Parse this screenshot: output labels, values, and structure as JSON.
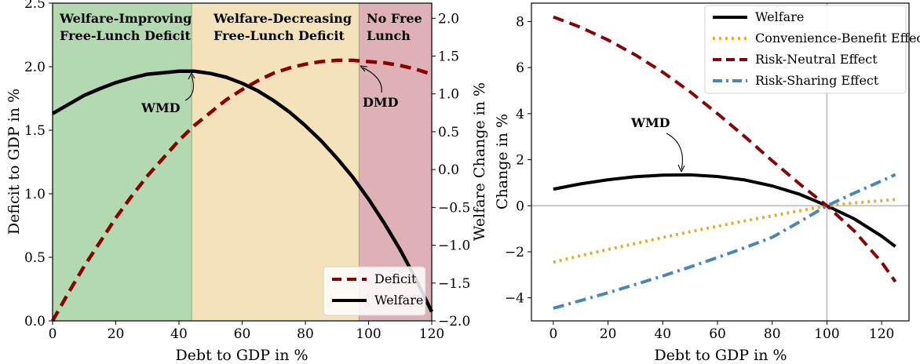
{
  "chart_data": [
    {
      "type": "line",
      "xlabel": "Debt to GDP in %",
      "ylabel": "Deficit to GDP in %",
      "ylabel_right": "Welfare Change in %",
      "xlim": [
        0,
        120
      ],
      "ylim": [
        0,
        2.5
      ],
      "ylim_right": [
        -2.0,
        2.2
      ],
      "xticks": [
        "0",
        "20",
        "40",
        "60",
        "80",
        "100",
        "120"
      ],
      "yticks": [
        "0.0",
        "0.5",
        "1.0",
        "1.5",
        "2.0",
        "2.5"
      ],
      "yticks_right": [
        "−2.0",
        "−1.5",
        "−1.0",
        "−0.5",
        "0.0",
        "0.5",
        "1.0",
        "1.5",
        "2.0"
      ],
      "regions": [
        {
          "label_line1": "Welfare-Improving",
          "label_line2": "Free-Lunch Deficit",
          "x_from": 0,
          "x_to": 44,
          "fill": "#b3d9b1",
          "text_color": "#2e8b2e"
        },
        {
          "label_line1": "Welfare-Decreasing",
          "label_line2": "Free-Lunch Deficit",
          "x_from": 44,
          "x_to": 97,
          "fill": "#f4e3ba",
          "text_color": "#d4a02e"
        },
        {
          "label_line1": "No Free",
          "label_line2": "Lunch",
          "x_from": 97,
          "x_to": 120,
          "fill": "#deb1b6",
          "text_color": "#a31515"
        }
      ],
      "annotations": [
        {
          "text": "WMD",
          "x": 44,
          "axis": "left",
          "y": 1.99
        },
        {
          "text": "DMD",
          "x": 97,
          "axis": "left",
          "y": 2.05
        }
      ],
      "legend_position": "lower-right",
      "series": [
        {
          "name": "Deficit",
          "axis": "left",
          "color": "#8b0000",
          "style": "dashed",
          "x": [
            0,
            5,
            10,
            15,
            20,
            25,
            30,
            35,
            40,
            45,
            50,
            55,
            60,
            65,
            70,
            75,
            80,
            85,
            90,
            95,
            100,
            105,
            110,
            115,
            120
          ],
          "y": [
            0.0,
            0.22,
            0.43,
            0.62,
            0.81,
            0.98,
            1.14,
            1.28,
            1.42,
            1.54,
            1.64,
            1.74,
            1.82,
            1.89,
            1.95,
            1.99,
            2.02,
            2.04,
            2.05,
            2.05,
            2.04,
            2.03,
            2.01,
            1.98,
            1.94
          ]
        },
        {
          "name": "Welfare",
          "axis": "right",
          "color": "#000000",
          "style": "solid",
          "x": [
            0,
            5,
            10,
            15,
            20,
            25,
            30,
            35,
            40,
            45,
            50,
            55,
            60,
            65,
            70,
            75,
            80,
            85,
            90,
            95,
            100,
            105,
            110,
            115,
            120
          ],
          "y": [
            0.74,
            0.86,
            0.98,
            1.07,
            1.15,
            1.21,
            1.26,
            1.28,
            1.3,
            1.3,
            1.27,
            1.22,
            1.14,
            1.04,
            0.91,
            0.76,
            0.58,
            0.38,
            0.15,
            -0.1,
            -0.39,
            -0.71,
            -1.06,
            -1.45,
            -1.88
          ]
        }
      ]
    },
    {
      "type": "line",
      "xlabel": "Debt to GDP in %",
      "ylabel": "Change in %",
      "xlim": [
        -8,
        130
      ],
      "ylim": [
        -5,
        8.8
      ],
      "xticks": [
        "0",
        "20",
        "40",
        "60",
        "80",
        "100",
        "120"
      ],
      "yticks": [
        "−4",
        "−2",
        "0",
        "2",
        "4",
        "6",
        "8"
      ],
      "reference_lines": [
        {
          "orientation": "horizontal",
          "value": 0,
          "color": "#c8c8c8"
        },
        {
          "orientation": "vertical",
          "value": 100,
          "color": "#c8c8c8"
        }
      ],
      "annotations": [
        {
          "text": "WMD",
          "x": 44,
          "y": 1.35
        }
      ],
      "legend_position": "top-right",
      "series": [
        {
          "name": "Welfare",
          "color": "#000000",
          "style": "solid",
          "x": [
            0,
            10,
            20,
            30,
            40,
            50,
            60,
            70,
            80,
            90,
            100,
            110,
            120,
            125
          ],
          "y": [
            0.72,
            0.95,
            1.13,
            1.26,
            1.33,
            1.34,
            1.27,
            1.12,
            0.86,
            0.5,
            0.0,
            -0.57,
            -1.32,
            -1.77
          ]
        },
        {
          "name": "Convenience-Benefit Effect",
          "color": "#e0b030",
          "style": "dotted",
          "x": [
            0,
            10,
            20,
            30,
            40,
            50,
            60,
            70,
            80,
            90,
            100,
            110,
            120,
            125
          ],
          "y": [
            -2.45,
            -2.17,
            -1.9,
            -1.64,
            -1.38,
            -1.13,
            -0.89,
            -0.66,
            -0.44,
            -0.22,
            0.0,
            0.12,
            0.22,
            0.27
          ]
        },
        {
          "name": "Risk-Neutral Effect",
          "color": "#8b0000",
          "style": "dashed",
          "x": [
            0,
            10,
            20,
            30,
            40,
            50,
            60,
            70,
            80,
            90,
            100,
            110,
            120,
            125
          ],
          "y": [
            8.2,
            7.75,
            7.2,
            6.55,
            5.8,
            4.95,
            4.0,
            3.0,
            1.95,
            0.95,
            0.0,
            -1.1,
            -2.45,
            -3.3
          ]
        },
        {
          "name": "Risk-Sharing Effect",
          "color": "#4a86b8",
          "style": "dashdot",
          "x": [
            0,
            10,
            20,
            30,
            40,
            50,
            60,
            70,
            80,
            90,
            100,
            110,
            120,
            125
          ],
          "y": [
            -4.45,
            -4.12,
            -3.78,
            -3.42,
            -3.05,
            -2.66,
            -2.25,
            -1.82,
            -1.37,
            -0.7,
            0.0,
            0.55,
            1.08,
            1.35
          ]
        }
      ]
    }
  ]
}
